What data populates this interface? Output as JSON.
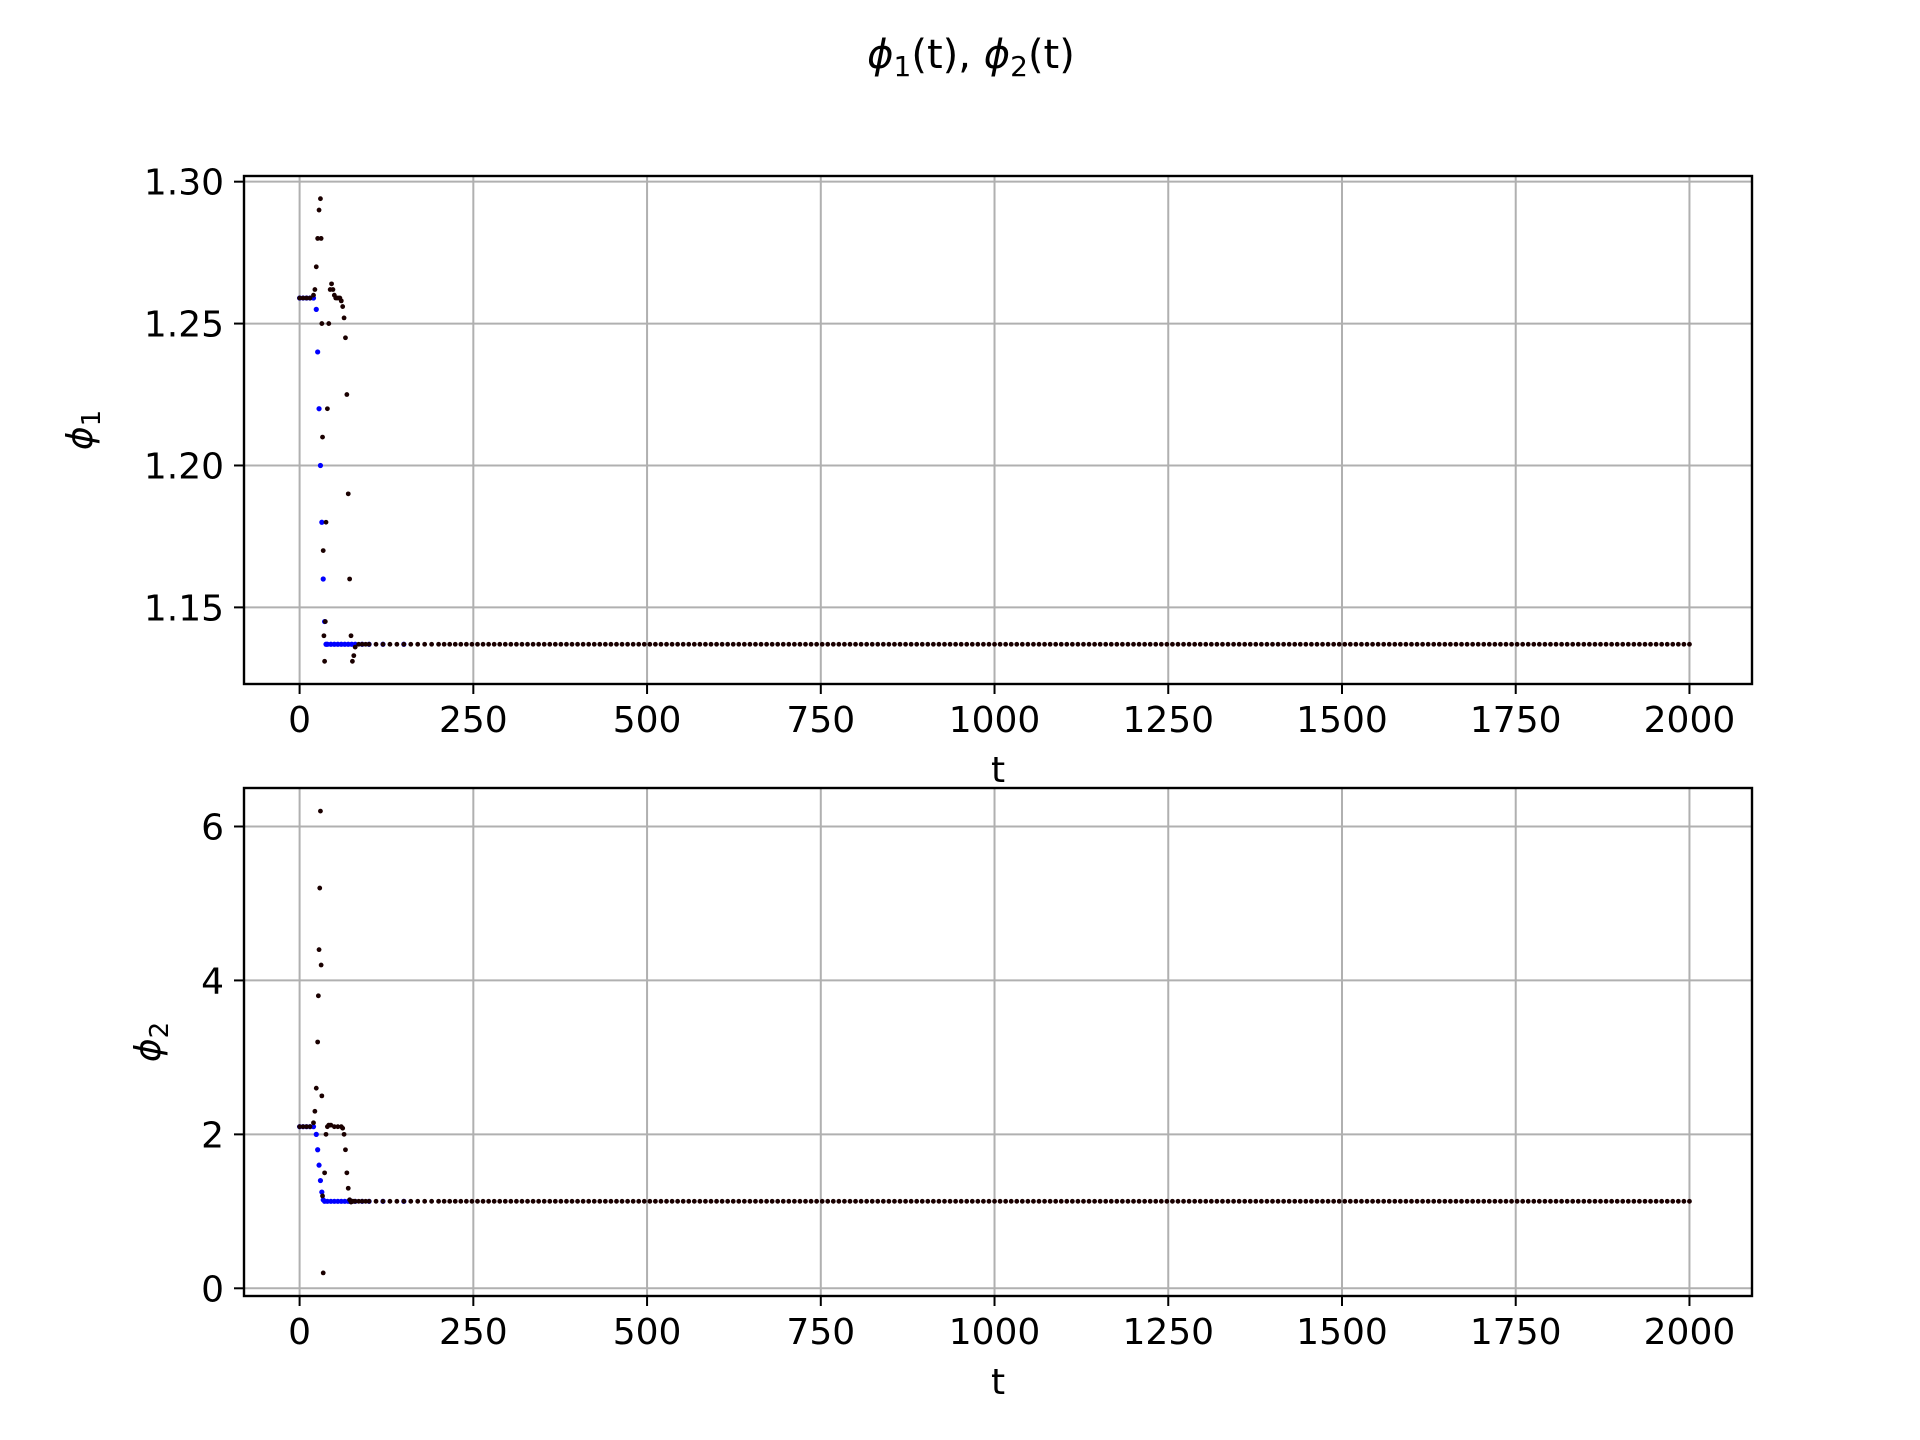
{
  "figure": {
    "title_parts": {
      "phi1": "ϕ",
      "sub1": "1",
      "arg1": "(t)",
      "comma": ", ",
      "phi2": "ϕ",
      "sub2": "2",
      "arg2": "(t)"
    }
  },
  "colors": {
    "background": "#ffffff",
    "grid": "#b0b0b0",
    "axes": "#000000",
    "series_blue": "#0000ff",
    "series_black": "#1a0000"
  },
  "chart_data": [
    {
      "type": "scatter",
      "name": "phi1-panel",
      "xlabel": "t",
      "ylabel_symbol": "ϕ",
      "ylabel_sub": "1",
      "xlim": [
        -80,
        2090
      ],
      "ylim": [
        1.123,
        1.302
      ],
      "xticks": [
        0,
        250,
        500,
        750,
        1000,
        1250,
        1500,
        1750,
        2000
      ],
      "xtick_labels": [
        "0",
        "250",
        "500",
        "750",
        "1000",
        "1250",
        "1500",
        "1750",
        "2000"
      ],
      "yticks": [
        1.15,
        1.2,
        1.25,
        1.3
      ],
      "ytick_labels": [
        "1.15",
        "1.20",
        "1.25",
        "1.30"
      ],
      "grid": true,
      "series": [
        {
          "color": "blue",
          "x": [
            0,
            5,
            10,
            15,
            20,
            24,
            26,
            28,
            30,
            32,
            34,
            36,
            38,
            40,
            45,
            50,
            55,
            60,
            65,
            70,
            75,
            80,
            90,
            100,
            120,
            150
          ],
          "y": [
            1.259,
            1.259,
            1.259,
            1.259,
            1.259,
            1.255,
            1.24,
            1.22,
            1.2,
            1.18,
            1.16,
            1.145,
            1.137,
            1.137,
            1.137,
            1.137,
            1.137,
            1.137,
            1.137,
            1.137,
            1.137,
            1.137,
            1.137,
            1.137,
            1.137,
            1.137
          ]
        },
        {
          "color": "black",
          "x": [
            0,
            5,
            10,
            15,
            20,
            22,
            24,
            26,
            28,
            30,
            31,
            32,
            33,
            34,
            35,
            36,
            37,
            38,
            40,
            42,
            44,
            46,
            48,
            50,
            52,
            54,
            56,
            58,
            60,
            62,
            64,
            66,
            68,
            70,
            72,
            74,
            76,
            78,
            80,
            85,
            90,
            95,
            100,
            110,
            120,
            130,
            140,
            150,
            160,
            170,
            180,
            190,
            200
          ],
          "y": [
            1.259,
            1.259,
            1.259,
            1.259,
            1.26,
            1.262,
            1.27,
            1.28,
            1.29,
            1.294,
            1.28,
            1.25,
            1.21,
            1.17,
            1.14,
            1.131,
            1.145,
            1.18,
            1.22,
            1.25,
            1.262,
            1.264,
            1.262,
            1.26,
            1.259,
            1.259,
            1.259,
            1.259,
            1.258,
            1.256,
            1.252,
            1.245,
            1.225,
            1.19,
            1.16,
            1.14,
            1.131,
            1.133,
            1.136,
            1.137,
            1.137,
            1.137,
            1.137,
            1.137,
            1.137,
            1.137,
            1.137,
            1.137,
            1.137,
            1.137,
            1.137,
            1.137,
            1.137
          ],
          "tail": {
            "from": 200,
            "to": 2000,
            "step": 8,
            "value": 1.137
          }
        }
      ]
    },
    {
      "type": "scatter",
      "name": "phi2-panel",
      "xlabel": "t",
      "ylabel_symbol": "ϕ",
      "ylabel_sub": "2",
      "xlim": [
        -80,
        2090
      ],
      "ylim": [
        -0.1,
        6.5
      ],
      "xticks": [
        0,
        250,
        500,
        750,
        1000,
        1250,
        1500,
        1750,
        2000
      ],
      "xtick_labels": [
        "0",
        "250",
        "500",
        "750",
        "1000",
        "1250",
        "1500",
        "1750",
        "2000"
      ],
      "yticks": [
        0,
        2,
        4,
        6
      ],
      "ytick_labels": [
        "0",
        "2",
        "4",
        "6"
      ],
      "grid": true,
      "series": [
        {
          "color": "blue",
          "x": [
            0,
            5,
            10,
            15,
            20,
            24,
            26,
            28,
            30,
            32,
            34,
            36,
            40,
            45,
            50,
            55,
            60,
            65,
            70,
            75,
            80,
            90,
            100,
            120,
            150
          ],
          "y": [
            2.1,
            2.1,
            2.1,
            2.1,
            2.1,
            2.0,
            1.8,
            1.6,
            1.4,
            1.25,
            1.15,
            1.13,
            1.13,
            1.13,
            1.13,
            1.13,
            1.13,
            1.13,
            1.13,
            1.13,
            1.13,
            1.13,
            1.13,
            1.13,
            1.13
          ]
        },
        {
          "color": "black",
          "x": [
            0,
            5,
            10,
            15,
            20,
            22,
            24,
            26,
            27,
            28,
            29,
            30,
            31,
            32,
            33,
            34,
            36,
            38,
            40,
            42,
            45,
            50,
            55,
            60,
            62,
            64,
            66,
            68,
            70,
            72,
            74,
            76,
            78,
            80,
            85,
            90,
            95,
            100,
            110,
            120,
            130,
            140,
            150,
            160,
            170,
            180,
            190,
            200
          ],
          "y": [
            2.1,
            2.1,
            2.1,
            2.1,
            2.15,
            2.3,
            2.6,
            3.2,
            3.8,
            4.4,
            5.2,
            6.2,
            4.2,
            2.5,
            1.2,
            0.2,
            1.5,
            2.0,
            2.1,
            2.12,
            2.12,
            2.1,
            2.1,
            2.1,
            2.08,
            2.0,
            1.8,
            1.5,
            1.3,
            1.15,
            1.12,
            1.13,
            1.13,
            1.13,
            1.13,
            1.13,
            1.13,
            1.13,
            1.13,
            1.13,
            1.13,
            1.13,
            1.13,
            1.13,
            1.13,
            1.13,
            1.13,
            1.13
          ],
          "tail": {
            "from": 200,
            "to": 2000,
            "step": 8,
            "value": 1.13
          }
        }
      ]
    }
  ]
}
